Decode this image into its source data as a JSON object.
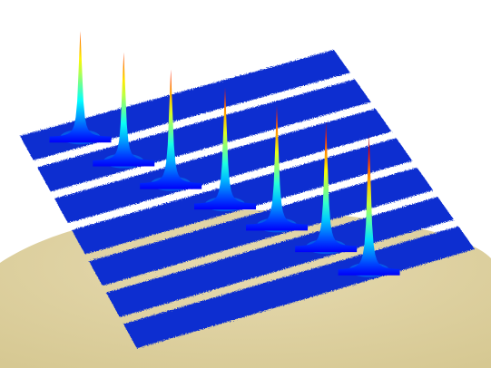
{
  "chart_data": {
    "type": "surface",
    "title": "",
    "xlabel": "",
    "ylabel": "",
    "zlabel": "",
    "axes_visible": false,
    "colormap": "jet",
    "ribbon_count": 7,
    "peaks": [
      {
        "ribbon": 1,
        "position": 0.17,
        "relative_height": 0.78
      },
      {
        "ribbon": 2,
        "position": 0.25,
        "relative_height": 0.8
      },
      {
        "ribbon": 3,
        "position": 0.34,
        "relative_height": 0.84
      },
      {
        "ribbon": 4,
        "position": 0.45,
        "relative_height": 0.86
      },
      {
        "ribbon": 5,
        "position": 0.55,
        "relative_height": 0.88
      },
      {
        "ribbon": 6,
        "position": 0.64,
        "relative_height": 0.92
      },
      {
        "ribbon": 7,
        "position": 0.71,
        "relative_height": 1.0
      }
    ]
  },
  "colors": {
    "surface_base": "#0a2fd0",
    "background_shape": "#dccfa0",
    "page": "#ffffff",
    "gap": "#ffffff"
  }
}
